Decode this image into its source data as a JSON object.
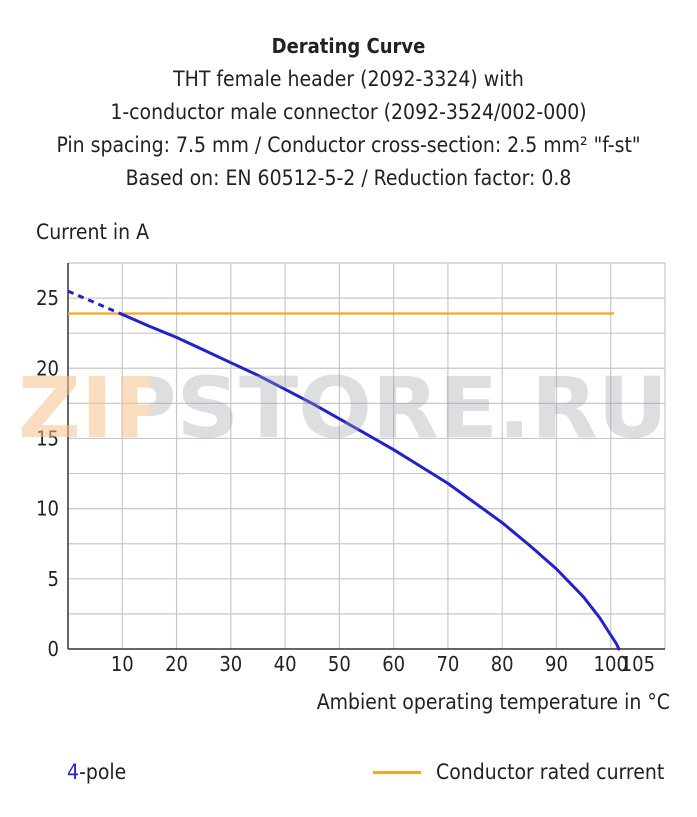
{
  "title_lines": [
    "Derating Curve",
    "THT female header (2092-3324) with",
    "1-conductor male connector (2092-3524/002-000)",
    "Pin spacing: 7.5 mm / Conductor cross-section: 2.5 mm² \"f-st\"",
    "Based on: EN 60512-5-2 / Reduction factor: 0.8"
  ],
  "watermark": "ZIPSTORE.RU",
  "colors": {
    "series": "#2222cc",
    "rated": "#f5a623",
    "grid": "#c8c8c8",
    "axis": "#333333"
  },
  "chart_data": {
    "type": "line",
    "title": "Derating Curve",
    "xlabel": "Ambient operating temperature in °C",
    "ylabel": "Current in A",
    "xlim": [
      0,
      110
    ],
    "ylim": [
      0,
      27.5
    ],
    "xticks": [
      10,
      20,
      30,
      40,
      50,
      60,
      70,
      80,
      90,
      100,
      105
    ],
    "yticks": [
      0,
      5,
      10,
      15,
      20,
      25
    ],
    "grid": true,
    "legend_position": "bottom",
    "series": [
      {
        "name": "4-pole",
        "solid_x": [
          9.6,
          15,
          20,
          25,
          30,
          35,
          40,
          45,
          50,
          55,
          60,
          65,
          70,
          75,
          80,
          85,
          90,
          95,
          98,
          100,
          101,
          101.5
        ],
        "solid_y": [
          23.9,
          23.0,
          22.2,
          21.3,
          20.4,
          19.5,
          18.5,
          17.5,
          16.4,
          15.3,
          14.2,
          13.0,
          11.8,
          10.4,
          9.0,
          7.4,
          5.7,
          3.7,
          2.2,
          1.0,
          0.4,
          0.0
        ],
        "dashed_x": [
          0,
          9.6
        ],
        "dashed_y": [
          25.5,
          23.9
        ]
      },
      {
        "name": "Conductor rated current",
        "x": [
          0,
          100.6
        ],
        "y": [
          23.9,
          23.9
        ]
      }
    ]
  },
  "legend": {
    "left_number": "4",
    "left_suffix": "-pole",
    "right_label": "Conductor rated current"
  }
}
